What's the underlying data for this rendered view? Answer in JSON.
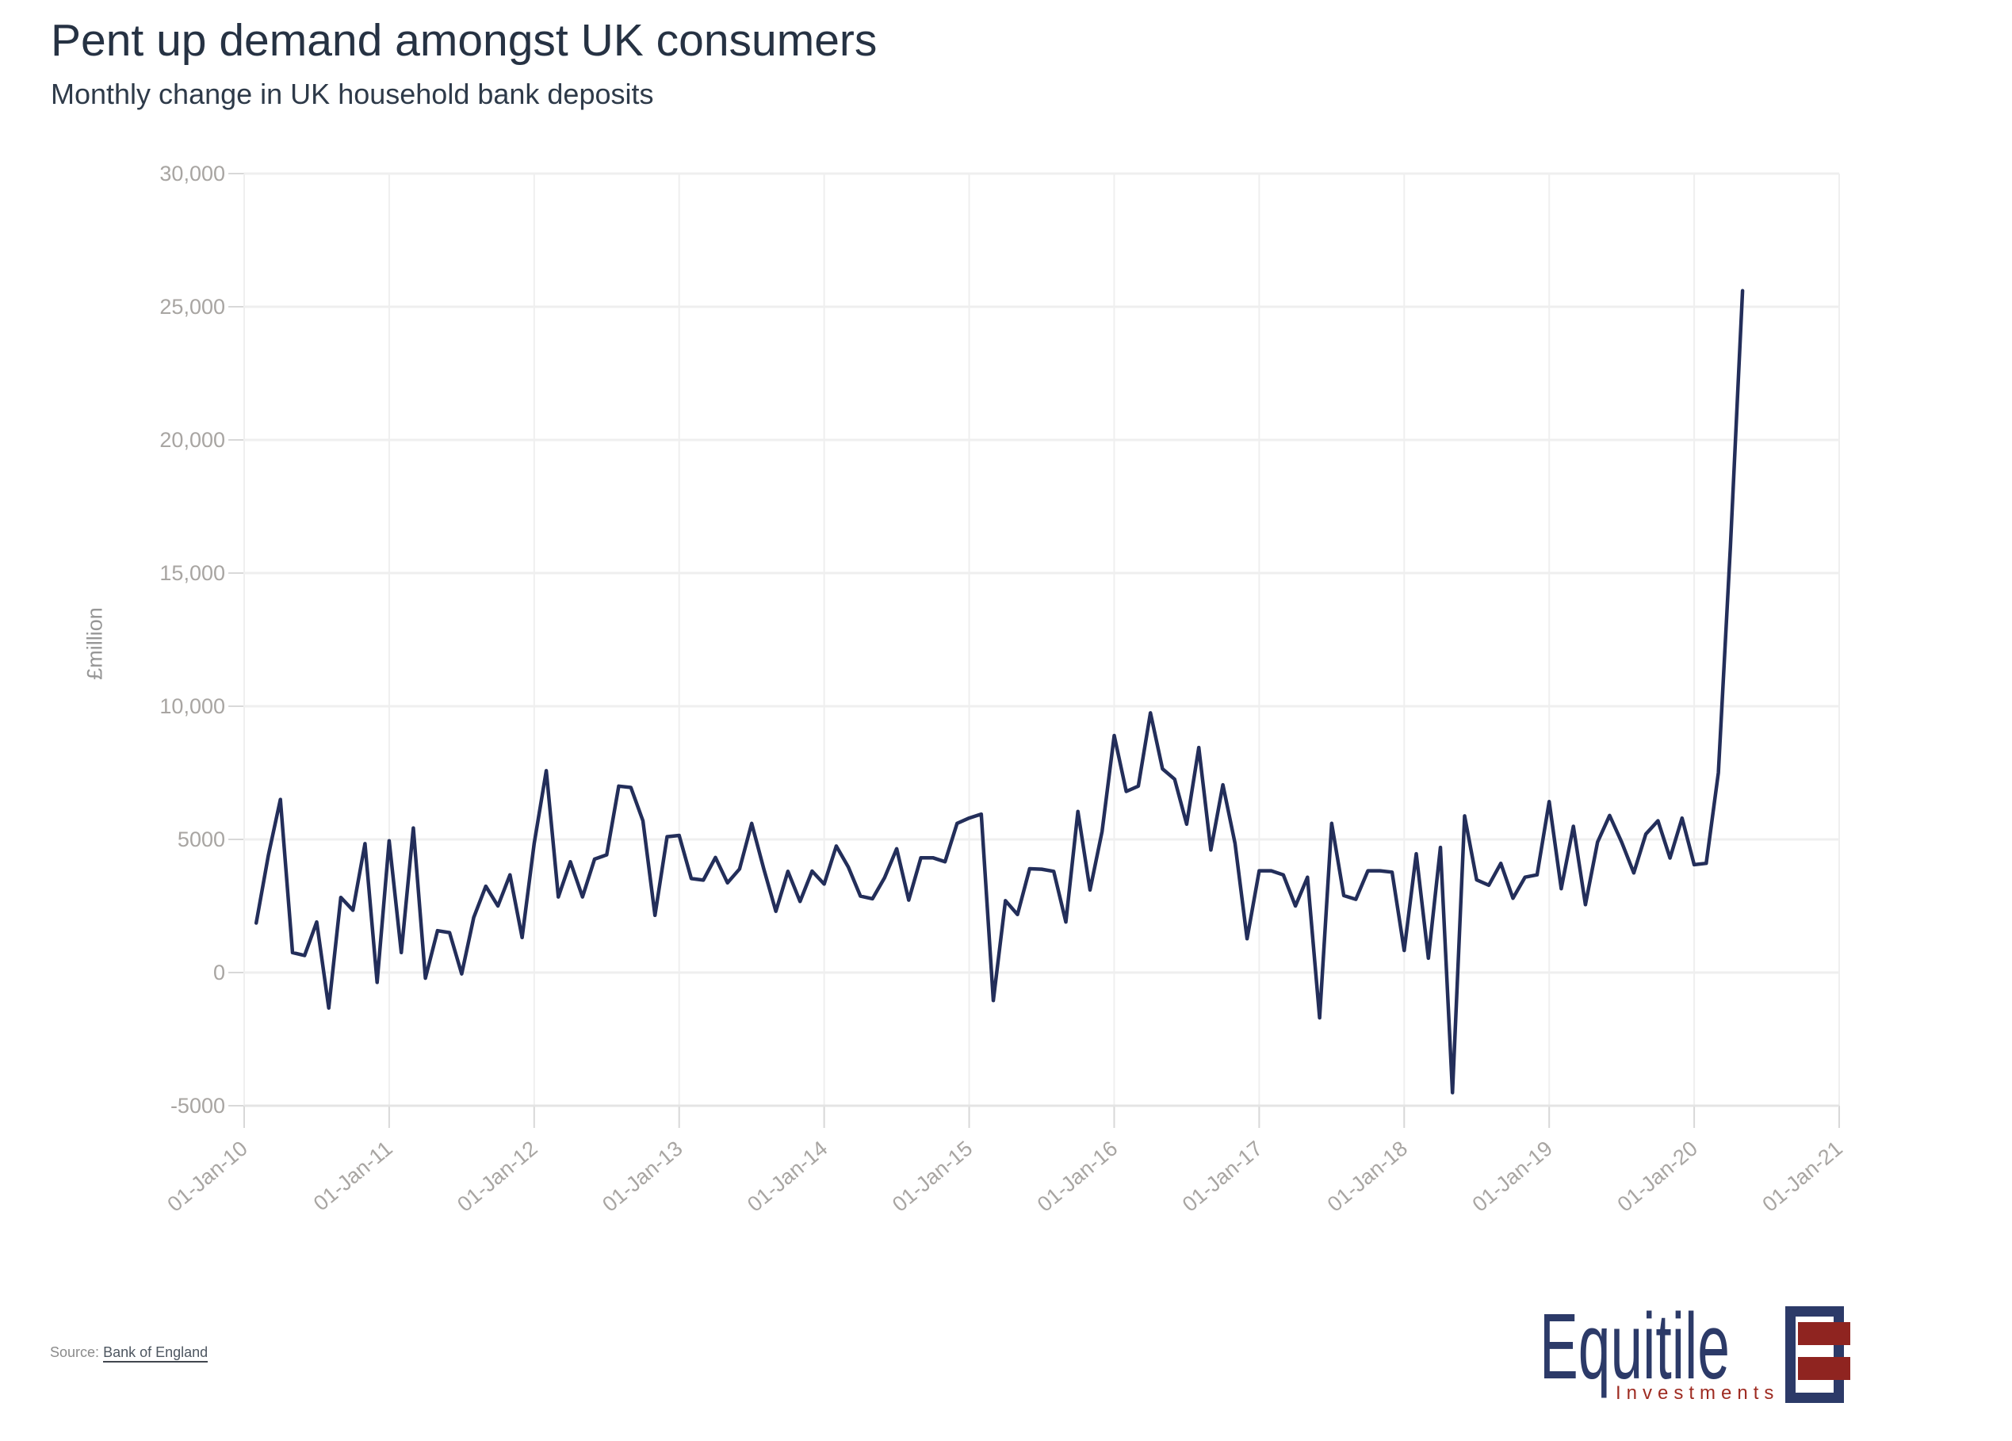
{
  "header": {
    "title": "Pent up demand amongst UK consumers",
    "subtitle": "Monthly change in UK household bank deposits"
  },
  "chart_data": {
    "type": "line",
    "title": "Pent up demand amongst UK consumers",
    "subtitle": "Monthly change in UK household bank deposits",
    "xlabel": "",
    "ylabel": "£million",
    "ylim": [
      -5000,
      30000
    ],
    "grid": true,
    "legend_position": "none",
    "y_tick_values": [
      30000,
      25000,
      20000,
      15000,
      10000,
      5000,
      0,
      -5000
    ],
    "y_tick_labels": [
      "30,000",
      "25,000",
      "20,000",
      "15,000",
      "10,000",
      "5000",
      "0",
      "-5000"
    ],
    "x_tick_labels": [
      "01-Jan-10",
      "01-Jan-11",
      "01-Jan-12",
      "01-Jan-13",
      "01-Jan-14",
      "01-Jan-15",
      "01-Jan-16",
      "01-Jan-17",
      "01-Jan-18",
      "01-Jan-19",
      "01-Jan-20",
      "01-Jan-21"
    ],
    "series": [
      {
        "name": "Monthly change in UK household bank deposits (£m)",
        "color": "#232e5a",
        "frequency": "monthly",
        "start_month": "2010-02",
        "end_month": "2020-05",
        "values": [
          1860,
          4400,
          6500,
          750,
          640,
          1900,
          -1330,
          2820,
          2340,
          4840,
          -370,
          4950,
          750,
          5430,
          -210,
          1570,
          1500,
          -50,
          2070,
          3240,
          2500,
          3670,
          1315,
          4840,
          7580,
          2840,
          4160,
          2840,
          4260,
          4420,
          7000,
          6950,
          5700,
          2150,
          5100,
          5150,
          3530,
          3470,
          4320,
          3370,
          3890,
          5600,
          3900,
          2300,
          3800,
          2670,
          3810,
          3320,
          4750,
          3960,
          2870,
          2770,
          3560,
          4650,
          2720,
          4310,
          4310,
          4160,
          5600,
          5800,
          5950,
          -1050,
          2700,
          2180,
          3900,
          3880,
          3800,
          1900,
          6050,
          3100,
          5300,
          8900,
          6800,
          7000,
          9750,
          7650,
          7260,
          5570,
          8450,
          4600,
          7050,
          4850,
          1270,
          3820,
          3820,
          3670,
          2500,
          3580,
          -1700,
          5600,
          2890,
          2750,
          3820,
          3820,
          3770,
          830,
          4460,
          540,
          4700,
          -4510,
          5880,
          3480,
          3280,
          4100,
          2790,
          3580,
          3670,
          6420,
          3150,
          5490,
          2550,
          4900,
          5900,
          4900,
          3740,
          5200,
          5700,
          4300,
          5800,
          4050,
          4100,
          7500,
          16000,
          25600
        ]
      }
    ]
  },
  "footer": {
    "source_label": "Source:",
    "source_link_text": "Bank of England"
  },
  "logo": {
    "brand": "Equitile",
    "subtext": "Investments",
    "brand_color": "#2c3a68",
    "accent_color": "#8f2420"
  },
  "colors": {
    "line": "#232e5a",
    "grid": "#efefef",
    "tick": "#d8d8d8",
    "axis_labels": "#a8a5a2",
    "title": "#263243",
    "subtitle": "#2e3a49",
    "y_axis_title": "#969696"
  }
}
